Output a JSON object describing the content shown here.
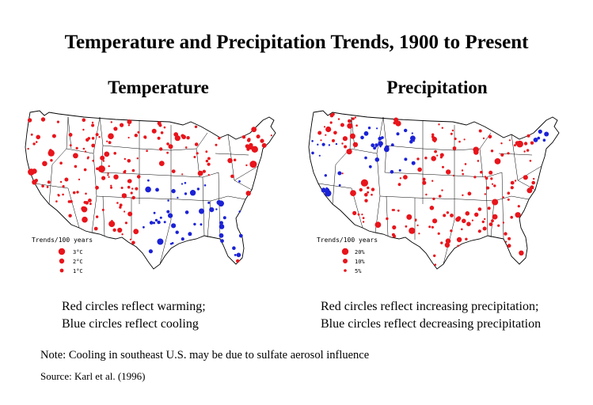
{
  "title": "Temperature and Precipitation Trends, 1900 to Present",
  "panels": [
    {
      "subtitle": "Temperature",
      "legend_title": "Trends/100 years",
      "legend": [
        {
          "label": "3°C",
          "value": 3
        },
        {
          "label": "2°C",
          "value": 2
        },
        {
          "label": "1°C",
          "value": 1
        }
      ],
      "caption_line1": "Red circles reflect warming;",
      "caption_line2": "Blue circles reflect cooling"
    },
    {
      "subtitle": "Precipitation",
      "legend_title": "Trends/100 years",
      "legend": [
        {
          "label": "20%",
          "value": 20
        },
        {
          "label": "10%",
          "value": 10
        },
        {
          "label": "5%",
          "value": 5
        }
      ],
      "caption_line1": "Red circles reflect increasing precipitation;",
      "caption_line2": "Blue circles reflect decreasing precipitation"
    }
  ],
  "note": "Note: Cooling in southeast U.S. may be due to sulfate aerosol influence",
  "source": "Source: Karl et al. (1996)",
  "colors": {
    "increase": "#e8141b",
    "decrease": "#1b22d6",
    "outline": "#000000"
  }
}
